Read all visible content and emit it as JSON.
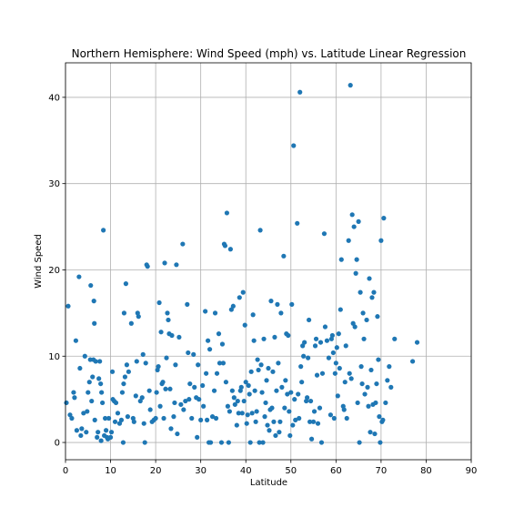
{
  "chart_data": {
    "type": "scatter",
    "title": "Northern Hemisphere: Wind Speed (mph) vs. Latitude Linear Regression",
    "xlabel": "Latitude",
    "ylabel": "Wind Speed",
    "xlim": [
      0,
      90
    ],
    "ylim": [
      -2,
      44
    ],
    "xticks": [
      "0",
      "10",
      "20",
      "30",
      "40",
      "50",
      "60",
      "70",
      "80",
      "90"
    ],
    "yticks": [
      "0",
      "10",
      "20",
      "30",
      "40"
    ],
    "grid": true,
    "marker_color": "#1f77b4",
    "points": [
      [
        0.2,
        4.6
      ],
      [
        0.6,
        15.8
      ],
      [
        1.0,
        3.2
      ],
      [
        1.4,
        2.8
      ],
      [
        1.8,
        5.8
      ],
      [
        2.0,
        5.2
      ],
      [
        2.3,
        11.8
      ],
      [
        2.5,
        1.4
      ],
      [
        3.0,
        19.2
      ],
      [
        3.2,
        8.6
      ],
      [
        3.4,
        0.8
      ],
      [
        3.6,
        1.6
      ],
      [
        4.0,
        3.4
      ],
      [
        4.3,
        10.0
      ],
      [
        4.6,
        1.2
      ],
      [
        4.8,
        3.6
      ],
      [
        5.0,
        5.8
      ],
      [
        5.3,
        7.0
      ],
      [
        5.5,
        9.6
      ],
      [
        5.6,
        18.2
      ],
      [
        5.8,
        4.8
      ],
      [
        6.0,
        7.6
      ],
      [
        6.2,
        9.6
      ],
      [
        6.3,
        16.4
      ],
      [
        6.4,
        13.8
      ],
      [
        6.5,
        2.6
      ],
      [
        6.7,
        9.4
      ],
      [
        7.0,
        0.6
      ],
      [
        7.2,
        1.2
      ],
      [
        7.4,
        7.4
      ],
      [
        7.6,
        9.4
      ],
      [
        7.8,
        6.8
      ],
      [
        7.9,
        0.2
      ],
      [
        8.0,
        5.8
      ],
      [
        8.2,
        4.6
      ],
      [
        8.4,
        24.6
      ],
      [
        8.6,
        0.8
      ],
      [
        8.8,
        2.8
      ],
      [
        9.0,
        1.4
      ],
      [
        9.2,
        0.6
      ],
      [
        9.4,
        0.4
      ],
      [
        9.6,
        2.8
      ],
      [
        10.0,
        0.6
      ],
      [
        10.2,
        1.2
      ],
      [
        10.4,
        8.2
      ],
      [
        10.5,
        5.0
      ],
      [
        10.8,
        4.8
      ],
      [
        11.0,
        2.4
      ],
      [
        11.2,
        4.6
      ],
      [
        11.6,
        3.4
      ],
      [
        12.0,
        2.2
      ],
      [
        12.4,
        2.6
      ],
      [
        12.6,
        5.8
      ],
      [
        12.8,
        0.0
      ],
      [
        12.9,
        6.8
      ],
      [
        13.0,
        15.0
      ],
      [
        13.2,
        7.6
      ],
      [
        13.4,
        18.4
      ],
      [
        13.6,
        9.0
      ],
      [
        13.8,
        3.0
      ],
      [
        14.0,
        8.2
      ],
      [
        14.6,
        13.8
      ],
      [
        15.0,
        2.8
      ],
      [
        15.2,
        2.4
      ],
      [
        15.6,
        5.4
      ],
      [
        15.8,
        9.4
      ],
      [
        16.0,
        15.0
      ],
      [
        16.2,
        14.6
      ],
      [
        16.6,
        4.8
      ],
      [
        17.0,
        5.2
      ],
      [
        17.2,
        10.2
      ],
      [
        17.4,
        2.2
      ],
      [
        17.6,
        0.0
      ],
      [
        17.8,
        9.2
      ],
      [
        18.0,
        20.6
      ],
      [
        18.2,
        20.4
      ],
      [
        18.6,
        6.0
      ],
      [
        18.8,
        3.8
      ],
      [
        19.2,
        2.4
      ],
      [
        19.6,
        2.6
      ],
      [
        20.0,
        2.8
      ],
      [
        20.2,
        5.8
      ],
      [
        20.4,
        8.4
      ],
      [
        20.6,
        8.8
      ],
      [
        20.8,
        16.2
      ],
      [
        21.0,
        4.2
      ],
      [
        21.2,
        12.8
      ],
      [
        21.4,
        6.8
      ],
      [
        21.6,
        7.0
      ],
      [
        21.8,
        2.8
      ],
      [
        22.0,
        20.8
      ],
      [
        22.2,
        6.2
      ],
      [
        22.4,
        9.8
      ],
      [
        22.6,
        15.0
      ],
      [
        22.8,
        14.2
      ],
      [
        23.0,
        12.6
      ],
      [
        23.2,
        6.2
      ],
      [
        23.4,
        1.6
      ],
      [
        23.6,
        12.4
      ],
      [
        24.0,
        3.0
      ],
      [
        24.2,
        4.6
      ],
      [
        24.4,
        9.0
      ],
      [
        24.6,
        20.6
      ],
      [
        24.8,
        1.0
      ],
      [
        25.2,
        12.2
      ],
      [
        25.6,
        4.4
      ],
      [
        26.0,
        23.0
      ],
      [
        26.2,
        3.8
      ],
      [
        26.6,
        4.8
      ],
      [
        27.0,
        16.0
      ],
      [
        27.2,
        10.4
      ],
      [
        27.4,
        5.0
      ],
      [
        27.6,
        6.8
      ],
      [
        28.0,
        2.8
      ],
      [
        28.4,
        10.2
      ],
      [
        28.6,
        6.4
      ],
      [
        29.0,
        5.2
      ],
      [
        29.2,
        0.6
      ],
      [
        29.4,
        9.0
      ],
      [
        29.6,
        5.0
      ],
      [
        30.0,
        2.6
      ],
      [
        30.4,
        6.6
      ],
      [
        30.6,
        4.2
      ],
      [
        31.0,
        15.2
      ],
      [
        31.2,
        8.0
      ],
      [
        31.4,
        2.6
      ],
      [
        31.6,
        11.8
      ],
      [
        31.8,
        0.0
      ],
      [
        32.0,
        10.8
      ],
      [
        32.2,
        0.0
      ],
      [
        32.6,
        3.0
      ],
      [
        33.0,
        6.0
      ],
      [
        33.2,
        15.0
      ],
      [
        33.4,
        2.8
      ],
      [
        33.6,
        8.0
      ],
      [
        34.0,
        12.6
      ],
      [
        34.2,
        9.2
      ],
      [
        34.6,
        0.0
      ],
      [
        34.8,
        11.4
      ],
      [
        35.0,
        9.2
      ],
      [
        35.2,
        23.0
      ],
      [
        35.4,
        22.8
      ],
      [
        35.6,
        7.0
      ],
      [
        35.8,
        26.6
      ],
      [
        36.0,
        4.2
      ],
      [
        36.2,
        0.0
      ],
      [
        36.4,
        3.6
      ],
      [
        36.6,
        22.4
      ],
      [
        36.8,
        15.4
      ],
      [
        37.0,
        6.0
      ],
      [
        37.2,
        15.8
      ],
      [
        37.4,
        5.2
      ],
      [
        37.6,
        4.4
      ],
      [
        38.0,
        2.0
      ],
      [
        38.2,
        4.8
      ],
      [
        38.4,
        3.4
      ],
      [
        38.6,
        16.8
      ],
      [
        38.8,
        6.0
      ],
      [
        39.0,
        6.4
      ],
      [
        39.2,
        3.4
      ],
      [
        39.4,
        17.4
      ],
      [
        39.6,
        4.8
      ],
      [
        39.8,
        13.6
      ],
      [
        40.0,
        7.0
      ],
      [
        40.2,
        2.2
      ],
      [
        40.4,
        3.2
      ],
      [
        40.6,
        6.6
      ],
      [
        40.8,
        5.6
      ],
      [
        41.0,
        0.0
      ],
      [
        41.2,
        8.2
      ],
      [
        41.4,
        3.4
      ],
      [
        41.6,
        14.8
      ],
      [
        41.8,
        11.8
      ],
      [
        42.0,
        6.0
      ],
      [
        42.2,
        2.4
      ],
      [
        42.4,
        3.6
      ],
      [
        42.6,
        9.6
      ],
      [
        42.8,
        8.4
      ],
      [
        43.0,
        0.0
      ],
      [
        43.2,
        24.6
      ],
      [
        43.4,
        9.0
      ],
      [
        43.6,
        5.8
      ],
      [
        43.8,
        0.0
      ],
      [
        44.0,
        12.0
      ],
      [
        44.2,
        3.0
      ],
      [
        44.4,
        4.6
      ],
      [
        44.6,
        7.2
      ],
      [
        44.8,
        2.0
      ],
      [
        45.0,
        8.6
      ],
      [
        45.2,
        1.4
      ],
      [
        45.4,
        3.8
      ],
      [
        45.6,
        16.4
      ],
      [
        45.8,
        4.0
      ],
      [
        46.0,
        8.2
      ],
      [
        46.2,
        2.4
      ],
      [
        46.4,
        12.2
      ],
      [
        46.6,
        0.8
      ],
      [
        46.8,
        6.0
      ],
      [
        47.0,
        16.0
      ],
      [
        47.2,
        9.2
      ],
      [
        47.4,
        1.2
      ],
      [
        47.6,
        2.4
      ],
      [
        47.8,
        15.0
      ],
      [
        48.0,
        6.4
      ],
      [
        48.4,
        21.6
      ],
      [
        48.6,
        4.0
      ],
      [
        48.8,
        7.2
      ],
      [
        49.0,
        12.6
      ],
      [
        49.2,
        5.6
      ],
      [
        49.4,
        12.4
      ],
      [
        49.6,
        3.6
      ],
      [
        49.8,
        0.8
      ],
      [
        50.0,
        5.8
      ],
      [
        50.2,
        16.0
      ],
      [
        50.4,
        2.0
      ],
      [
        50.6,
        34.4
      ],
      [
        50.8,
        5.0
      ],
      [
        51.0,
        2.6
      ],
      [
        51.4,
        25.4
      ],
      [
        51.6,
        5.6
      ],
      [
        51.8,
        2.8
      ],
      [
        52.0,
        40.6
      ],
      [
        52.2,
        8.8
      ],
      [
        52.4,
        7.0
      ],
      [
        52.6,
        11.2
      ],
      [
        52.8,
        10.0
      ],
      [
        53.0,
        11.6
      ],
      [
        53.4,
        4.8
      ],
      [
        53.6,
        5.2
      ],
      [
        53.8,
        9.8
      ],
      [
        54.0,
        14.2
      ],
      [
        54.2,
        2.4
      ],
      [
        54.4,
        4.8
      ],
      [
        54.6,
        0.4
      ],
      [
        55.0,
        2.4
      ],
      [
        55.2,
        3.6
      ],
      [
        55.4,
        11.2
      ],
      [
        55.6,
        12.0
      ],
      [
        55.8,
        7.8
      ],
      [
        56.0,
        2.2
      ],
      [
        56.4,
        4.0
      ],
      [
        56.6,
        11.6
      ],
      [
        56.8,
        0.0
      ],
      [
        57.0,
        8.0
      ],
      [
        57.4,
        24.2
      ],
      [
        57.6,
        13.4
      ],
      [
        58.0,
        11.8
      ],
      [
        58.4,
        9.8
      ],
      [
        58.8,
        3.2
      ],
      [
        59.0,
        12.0
      ],
      [
        59.2,
        12.4
      ],
      [
        59.4,
        10.4
      ],
      [
        59.6,
        2.8
      ],
      [
        59.8,
        8.0
      ],
      [
        60.0,
        9.2
      ],
      [
        60.2,
        11.0
      ],
      [
        60.4,
        5.4
      ],
      [
        60.6,
        12.6
      ],
      [
        60.8,
        8.6
      ],
      [
        61.0,
        15.4
      ],
      [
        61.2,
        21.2
      ],
      [
        61.6,
        4.2
      ],
      [
        61.8,
        3.8
      ],
      [
        62.0,
        7.0
      ],
      [
        62.2,
        11.2
      ],
      [
        62.4,
        2.8
      ],
      [
        62.8,
        23.4
      ],
      [
        63.0,
        8.0
      ],
      [
        63.2,
        41.4
      ],
      [
        63.4,
        7.4
      ],
      [
        63.6,
        26.4
      ],
      [
        63.8,
        13.8
      ],
      [
        64.0,
        25.0
      ],
      [
        64.2,
        13.4
      ],
      [
        64.4,
        19.6
      ],
      [
        64.6,
        21.2
      ],
      [
        64.8,
        4.6
      ],
      [
        65.0,
        25.6
      ],
      [
        65.2,
        0.0
      ],
      [
        65.4,
        17.4
      ],
      [
        65.6,
        8.8
      ],
      [
        65.8,
        6.8
      ],
      [
        66.0,
        15.0
      ],
      [
        66.2,
        12.0
      ],
      [
        66.4,
        5.6
      ],
      [
        66.8,
        14.2
      ],
      [
        67.0,
        6.4
      ],
      [
        67.2,
        4.2
      ],
      [
        67.4,
        19.0
      ],
      [
        67.6,
        1.2
      ],
      [
        67.8,
        8.4
      ],
      [
        68.0,
        16.8
      ],
      [
        68.2,
        4.4
      ],
      [
        68.4,
        17.4
      ],
      [
        68.6,
        1.0
      ],
      [
        68.8,
        4.6
      ],
      [
        69.0,
        6.8
      ],
      [
        69.2,
        14.6
      ],
      [
        69.4,
        9.6
      ],
      [
        69.6,
        3.0
      ],
      [
        69.8,
        0.0
      ],
      [
        70.0,
        23.4
      ],
      [
        70.2,
        2.4
      ],
      [
        70.4,
        2.6
      ],
      [
        70.6,
        26.0
      ],
      [
        71.0,
        4.6
      ],
      [
        71.4,
        7.2
      ],
      [
        71.8,
        8.8
      ],
      [
        72.2,
        6.4
      ],
      [
        73.0,
        12.0
      ],
      [
        77.0,
        9.4
      ],
      [
        78.0,
        11.6
      ]
    ]
  }
}
